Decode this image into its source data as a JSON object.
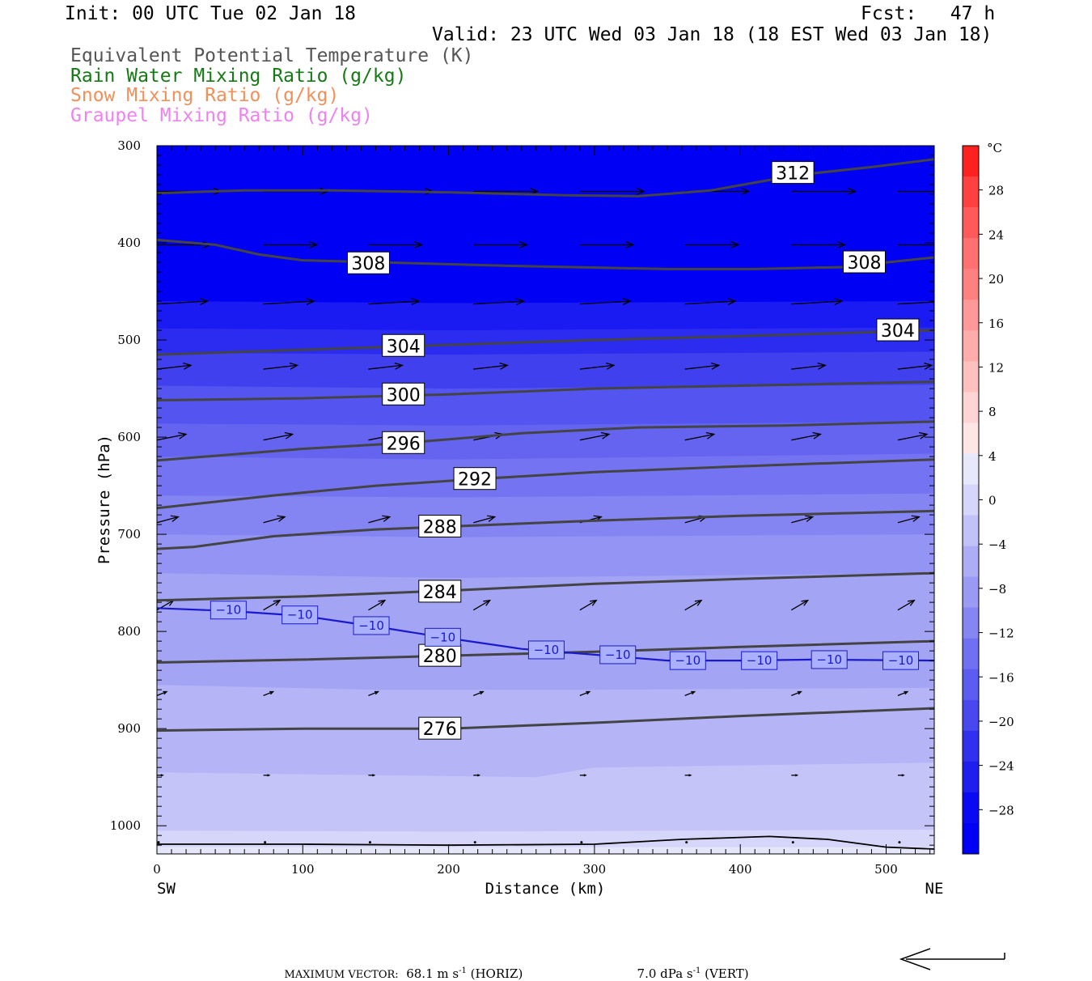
{
  "header": {
    "init": "Init: 00 UTC Tue 02 Jan 18",
    "fcst": "Fcst:   47 h",
    "valid": "Valid: 23 UTC Wed 03 Jan 18 (18 EST Wed 03 Jan 18)"
  },
  "legend": [
    {
      "text": "Equivalent Potential Temperature (K)",
      "color": "#555555"
    },
    {
      "text": "Rain Water Mixing Ratio (g/kg)",
      "color": "#157a15"
    },
    {
      "text": "Snow Mixing Ratio (g/kg)",
      "color": "#f0905a"
    },
    {
      "text": "Graupel Mixing Ratio (g/kg)",
      "color": "#ee82ee"
    }
  ],
  "footer": {
    "label": "MAXIMUM VECTOR:",
    "horiz_value": "68.1 m s",
    "horiz_exp": "-1",
    "horiz_suffix": " (HORIZ)",
    "vert_value": "7.0 dPa s",
    "vert_exp": "-1",
    "vert_suffix": " (VERT)"
  },
  "chart_data": {
    "type": "contour-cross-section",
    "xlabel": "Distance (km)",
    "ylabel": "Pressure (hPa)",
    "x_ticks": [
      0,
      100,
      200,
      300,
      400,
      500
    ],
    "y_ticks": [
      300,
      400,
      500,
      600,
      700,
      800,
      900,
      1000
    ],
    "xlim": [
      0,
      533
    ],
    "ylim": [
      1029,
      300
    ],
    "y_scale": "linear-pressure-down",
    "x_end_labels": {
      "left": "SW",
      "right": "NE"
    },
    "colorbar": {
      "unit": "°C",
      "ticks": [
        28,
        24,
        20,
        16,
        12,
        8,
        4,
        0,
        -4,
        -8,
        -12,
        -16,
        -20,
        -24,
        -28
      ],
      "tick_labels": [
        "28",
        "24",
        "20",
        "16",
        "12",
        "8",
        "4",
        "0",
        "−4",
        "−8",
        "−12",
        "−16",
        "−20",
        "−24",
        "−28"
      ],
      "range": [
        -32,
        32
      ],
      "colors_warm": [
        "#ff2020",
        "#ff4040",
        "#ff5a5a",
        "#ff7070",
        "#ff8080",
        "#ff9898",
        "#ffacac",
        "#ffc0c0",
        "#ffd4d4",
        "#ffe6e6"
      ],
      "colors_cold": [
        "#ffffff",
        "#e8e8fc",
        "#d6d6fa",
        "#c2c2f8",
        "#adadf6",
        "#9a9af5",
        "#8686f3",
        "#7070f2",
        "#5c5cf0",
        "#4848ee",
        "#3030ee",
        "#1e1eef",
        "#0a0af2",
        "#0000f5"
      ]
    },
    "temperature_bands": [
      {
        "temp_c": -6,
        "color": "#e6e6fb",
        "top": [
          [
            0,
            1022
          ],
          [
            200,
            1022
          ],
          [
            533,
            1022
          ]
        ]
      },
      {
        "temp_c": -8,
        "color": "#d6d6fa",
        "top": [
          [
            0,
            1005
          ],
          [
            200,
            1006
          ],
          [
            533,
            1004
          ]
        ]
      },
      {
        "temp_c": -10,
        "color": "#c4c4f8",
        "top": [
          [
            0,
            945
          ],
          [
            260,
            950
          ],
          [
            300,
            940
          ],
          [
            533,
            935
          ]
        ]
      },
      {
        "temp_c": -12,
        "color": "#b4b4f7",
        "top": [
          [
            0,
            855
          ],
          [
            150,
            860
          ],
          [
            300,
            860
          ],
          [
            533,
            858
          ]
        ]
      },
      {
        "temp_c": -14,
        "color": "#a4a4f5",
        "top": [
          [
            0,
            740
          ],
          [
            200,
            745
          ],
          [
            533,
            740
          ]
        ]
      },
      {
        "temp_c": -16,
        "color": "#9494f4",
        "top": [
          [
            0,
            700
          ],
          [
            200,
            703
          ],
          [
            533,
            700
          ]
        ]
      },
      {
        "temp_c": -18,
        "color": "#8484f3",
        "top": [
          [
            0,
            660
          ],
          [
            200,
            662
          ],
          [
            533,
            658
          ]
        ]
      },
      {
        "temp_c": -20,
        "color": "#7474f2",
        "top": [
          [
            0,
            620
          ],
          [
            200,
            623
          ],
          [
            533,
            617
          ]
        ]
      },
      {
        "temp_c": -22,
        "color": "#6464f1",
        "top": [
          [
            0,
            586
          ],
          [
            200,
            588
          ],
          [
            533,
            584
          ]
        ]
      },
      {
        "temp_c": -24,
        "color": "#5454f0",
        "top": [
          [
            0,
            547
          ],
          [
            200,
            550
          ],
          [
            533,
            546
          ]
        ]
      },
      {
        "temp_c": -26,
        "color": "#4040ef",
        "top": [
          [
            0,
            513
          ],
          [
            200,
            515
          ],
          [
            533,
            512
          ]
        ]
      },
      {
        "temp_c": -28,
        "color": "#2c2cf0",
        "top": [
          [
            0,
            488
          ],
          [
            200,
            490
          ],
          [
            533,
            487
          ]
        ]
      },
      {
        "temp_c": -30,
        "color": "#1a1af2",
        "top": [
          [
            0,
            460
          ],
          [
            200,
            462
          ],
          [
            533,
            460
          ]
        ]
      },
      {
        "temp_c": -32,
        "color": "#0000f5",
        "top": [
          [
            0,
            300
          ],
          [
            533,
            300
          ]
        ]
      }
    ],
    "theta_e_contours": [
      {
        "value": 312,
        "label": "312",
        "color": "#444444",
        "points": [
          [
            0,
            349
          ],
          [
            60,
            346
          ],
          [
            120,
            346
          ],
          [
            200,
            348
          ],
          [
            280,
            351
          ],
          [
            330,
            352
          ],
          [
            380,
            346
          ],
          [
            440,
            330
          ],
          [
            490,
            322
          ],
          [
            533,
            314
          ]
        ],
        "label_at": [
          436,
          328
        ]
      },
      {
        "value": 308,
        "label": "308",
        "color": "#444444",
        "points": [
          [
            0,
            397
          ],
          [
            40,
            402
          ],
          [
            70,
            412
          ],
          [
            100,
            418
          ],
          [
            150,
            420
          ],
          [
            250,
            424
          ],
          [
            350,
            427
          ],
          [
            410,
            427
          ],
          [
            470,
            425
          ],
          [
            533,
            415
          ]
        ],
        "label_at": [
          145,
          421
        ]
      },
      {
        "value": 308,
        "label": "308",
        "color": "#444444",
        "points": [],
        "label_at": [
          485,
          420
        ]
      },
      {
        "value": 304,
        "label": "304",
        "color": "#444444",
        "points": [
          [
            0,
            515
          ],
          [
            100,
            510
          ],
          [
            200,
            505
          ],
          [
            300,
            500
          ],
          [
            400,
            496
          ],
          [
            533,
            490
          ]
        ],
        "label_at": [
          169,
          506
        ]
      },
      {
        "value": 304,
        "label": "304",
        "color": "#444444",
        "points": [],
        "label_at": [
          508,
          490
        ]
      },
      {
        "value": 300,
        "label": "300",
        "color": "#444444",
        "points": [
          [
            0,
            562
          ],
          [
            100,
            560
          ],
          [
            200,
            556
          ],
          [
            300,
            550
          ],
          [
            400,
            547
          ],
          [
            533,
            543
          ]
        ],
        "label_at": [
          169,
          556
        ]
      },
      {
        "value": 296,
        "label": "296",
        "color": "#444444",
        "points": [
          [
            0,
            624
          ],
          [
            100,
            612
          ],
          [
            170,
            606
          ],
          [
            250,
            596
          ],
          [
            330,
            590
          ],
          [
            430,
            588
          ],
          [
            533,
            584
          ]
        ],
        "label_at": [
          169,
          606
        ]
      },
      {
        "value": 292,
        "label": "292",
        "color": "#444444",
        "points": [
          [
            0,
            673
          ],
          [
            80,
            660
          ],
          [
            150,
            650
          ],
          [
            220,
            643
          ],
          [
            300,
            636
          ],
          [
            400,
            630
          ],
          [
            533,
            623
          ]
        ],
        "label_at": [
          218,
          643
        ]
      },
      {
        "value": 288,
        "label": "288",
        "color": "#444444",
        "points": [
          [
            0,
            715
          ],
          [
            25,
            713
          ],
          [
            80,
            702
          ],
          [
            150,
            695
          ],
          [
            200,
            692
          ],
          [
            300,
            686
          ],
          [
            400,
            681
          ],
          [
            533,
            676
          ]
        ],
        "label_at": [
          194,
          692
        ]
      },
      {
        "value": 284,
        "label": "284",
        "color": "#444444",
        "points": [
          [
            0,
            768
          ],
          [
            100,
            764
          ],
          [
            200,
            758
          ],
          [
            300,
            751
          ],
          [
            400,
            746
          ],
          [
            533,
            740
          ]
        ],
        "label_at": [
          194,
          759
        ]
      },
      {
        "value": 280,
        "label": "280",
        "color": "#444444",
        "points": [
          [
            0,
            832
          ],
          [
            100,
            829
          ],
          [
            200,
            825
          ],
          [
            300,
            821
          ],
          [
            400,
            816
          ],
          [
            533,
            810
          ]
        ],
        "label_at": [
          194,
          825
        ]
      },
      {
        "value": 276,
        "label": "276",
        "color": "#444444",
        "points": [
          [
            0,
            902
          ],
          [
            100,
            900
          ],
          [
            200,
            900
          ],
          [
            300,
            894
          ],
          [
            400,
            887
          ],
          [
            533,
            879
          ]
        ],
        "label_at": [
          194,
          900
        ]
      }
    ],
    "isotherm": {
      "value": -10,
      "label": "−10",
      "color": "#1a1acc",
      "points": [
        [
          0,
          776
        ],
        [
          50,
          779
        ],
        [
          100,
          784
        ],
        [
          150,
          795
        ],
        [
          200,
          807
        ],
        [
          250,
          818
        ],
        [
          300,
          824
        ],
        [
          350,
          830
        ],
        [
          400,
          830
        ],
        [
          450,
          829
        ],
        [
          533,
          830
        ]
      ],
      "label_positions": [
        [
          49,
          778
        ],
        [
          98,
          783
        ],
        [
          147,
          794
        ],
        [
          196,
          806
        ],
        [
          267,
          819
        ],
        [
          316,
          824
        ],
        [
          364,
          830
        ],
        [
          413,
          830
        ],
        [
          461,
          829
        ],
        [
          510,
          830
        ]
      ]
    },
    "surface": {
      "color": "#000000",
      "points": [
        [
          0,
          1019
        ],
        [
          100,
          1019
        ],
        [
          200,
          1020
        ],
        [
          300,
          1019
        ],
        [
          360,
          1014
        ],
        [
          420,
          1011
        ],
        [
          460,
          1014
        ],
        [
          500,
          1022
        ],
        [
          533,
          1024
        ]
      ]
    },
    "wind_vectors": [
      {
        "row_p": 347,
        "xs": [
          0,
          73,
          145,
          217,
          290,
          362,
          435,
          508
        ],
        "u": 0.66,
        "w": 0.0
      },
      {
        "row_p": 402,
        "xs": [
          0,
          73,
          145,
          217,
          290,
          362,
          435,
          508
        ],
        "u": 0.55,
        "w": 0.0
      },
      {
        "row_p": 463,
        "xs": [
          0,
          73,
          145,
          217,
          290,
          362,
          435,
          508
        ],
        "u": 0.52,
        "w": 0.03
      },
      {
        "row_p": 530,
        "xs": [
          0,
          73,
          145,
          217,
          290,
          362,
          435,
          508
        ],
        "u": 0.35,
        "w": 0.04
      },
      {
        "row_p": 603,
        "xs": [
          0,
          73,
          145,
          217,
          290,
          362,
          435,
          508
        ],
        "u": 0.3,
        "w": 0.06
      },
      {
        "row_p": 688,
        "xs": [
          0,
          73,
          145,
          217,
          290,
          362,
          435,
          508
        ],
        "u": 0.22,
        "w": 0.06
      },
      {
        "row_p": 778,
        "xs": [
          0,
          73,
          145,
          217,
          290,
          362,
          435,
          508
        ],
        "u": 0.17,
        "w": 0.1
      },
      {
        "row_p": 866,
        "xs": [
          0,
          73,
          145,
          217,
          290,
          362,
          435,
          508
        ],
        "u": 0.1,
        "w": 0.04
      },
      {
        "row_p": 948,
        "xs": [
          0,
          73,
          145,
          217,
          290,
          362,
          435,
          508
        ],
        "u": 0.06,
        "w": 0.0
      },
      {
        "row_p": 1017,
        "xs": [
          0,
          73,
          145,
          217,
          290,
          362,
          435,
          508
        ],
        "u": 0.02,
        "w": 0.0
      }
    ]
  }
}
